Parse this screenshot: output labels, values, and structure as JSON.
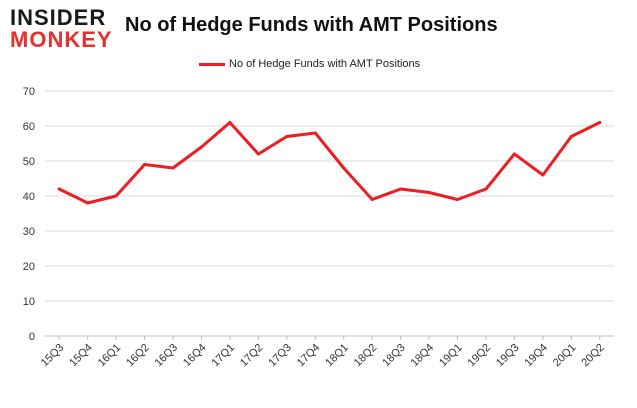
{
  "brand": {
    "line1": "INSIDER",
    "line2": "MONKEY"
  },
  "chart_data": {
    "type": "line",
    "title": "No of Hedge Funds with AMT Positions",
    "xlabel": "",
    "ylabel": "",
    "ylim": [
      0,
      70
    ],
    "yticks": [
      0,
      10,
      20,
      30,
      40,
      50,
      60,
      70
    ],
    "grid": true,
    "legend_position": "top-center",
    "categories": [
      "15Q3",
      "15Q4",
      "16Q1",
      "16Q2",
      "16Q3",
      "16Q4",
      "17Q1",
      "17Q2",
      "17Q3",
      "17Q4",
      "18Q1",
      "18Q2",
      "18Q3",
      "18Q4",
      "19Q1",
      "19Q2",
      "19Q3",
      "19Q4",
      "20Q1",
      "20Q2"
    ],
    "series": [
      {
        "name": "No of Hedge Funds with AMT Positions",
        "color": "#ee1d23",
        "values": [
          42,
          38,
          40,
          49,
          48,
          54,
          61,
          52,
          57,
          58,
          48,
          39,
          42,
          41,
          39,
          42,
          52,
          46,
          57,
          61
        ]
      }
    ]
  }
}
